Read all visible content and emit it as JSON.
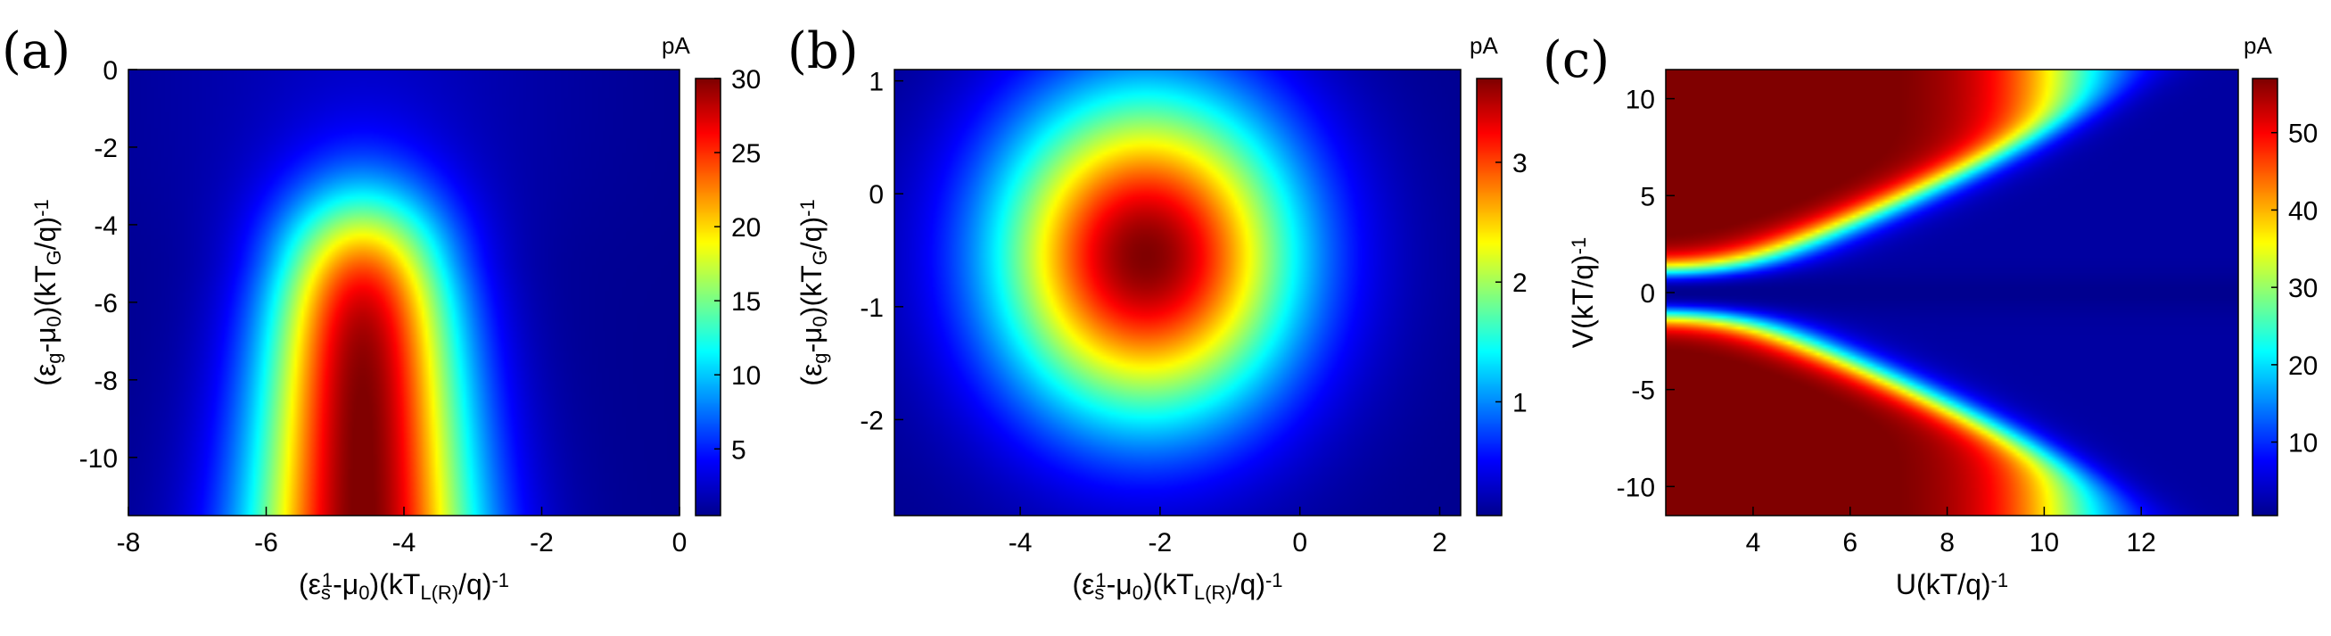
{
  "colormap": [
    "#00008F",
    "#0000FF",
    "#0080FF",
    "#00FFFF",
    "#80FF80",
    "#FFFF00",
    "#FF8000",
    "#FF0000",
    "#800000"
  ],
  "chart_data": [
    {
      "type": "heatmap",
      "panel_label": "(a)",
      "colorbar_unit": "pA",
      "xlabel": {
        "a": "(ε",
        "b": "s",
        "c": "1",
        "d": "-μ",
        "e": "0",
        "f": ")(kT",
        "g": "L(R)",
        "h": "/q)",
        "i": "-1"
      },
      "ylabel": {
        "a": "(ε",
        "b": "g",
        "c": "-μ",
        "d": "0",
        "e": ")(kT",
        "f": "G",
        "g": "/q)",
        "h": "-1"
      },
      "xlim": [
        -8,
        0
      ],
      "ylim": [
        -11.5,
        0
      ],
      "xticks": [
        -8,
        -6,
        -4,
        -2,
        0
      ],
      "xtick_labels": [
        "-8",
        "-6",
        "-4",
        "-2",
        "0"
      ],
      "yticks": [
        0,
        -2,
        -4,
        -6,
        -8,
        -10
      ],
      "ytick_labels": [
        "0",
        "-2",
        "-4",
        "-6",
        "-8",
        "-10"
      ],
      "cbar_range": [
        0.5,
        30
      ],
      "cbar_ticks": [
        5,
        10,
        15,
        20,
        25,
        30
      ],
      "cbar_tick_labels": [
        "5",
        "10",
        "15",
        "20",
        "25",
        "30"
      ],
      "model": "arch",
      "peak_value": 30,
      "peak_x": -4.6
    },
    {
      "type": "heatmap",
      "panel_label": "(b)",
      "colorbar_unit": "pA",
      "xlabel": {
        "a": "(ε",
        "b": "s",
        "c": "1",
        "d": "-μ",
        "e": "0",
        "f": ")(kT",
        "g": "L(R)",
        "h": "/q)",
        "i": "-1"
      },
      "ylabel": {
        "a": "(ε",
        "b": "g",
        "c": "-μ",
        "d": "0",
        "e": ")(kT",
        "f": "G",
        "g": "/q)",
        "h": "-1"
      },
      "xlim": [
        -5.8,
        2.3
      ],
      "ylim": [
        -2.85,
        1.1
      ],
      "xticks": [
        -4,
        -2,
        0,
        2
      ],
      "xtick_labels": [
        "-4",
        "-2",
        "0",
        "2"
      ],
      "yticks": [
        1,
        0,
        -1,
        -2
      ],
      "ytick_labels": [
        "1",
        "0",
        "-1",
        "-2"
      ],
      "cbar_range": [
        0.05,
        3.7
      ],
      "cbar_ticks": [
        1,
        2,
        3
      ],
      "cbar_tick_labels": [
        "1",
        "2",
        "3"
      ],
      "model": "blob",
      "peak_value": 3.7,
      "peak_x": -2.2,
      "peak_y": -0.55
    },
    {
      "type": "heatmap",
      "panel_label": "(c)",
      "colorbar_unit": "pA",
      "xlabel": {
        "a": "U(kT/q)",
        "b": "-1"
      },
      "ylabel": {
        "a": "V(kT/q)",
        "b": "-1"
      },
      "xlim": [
        2.2,
        14
      ],
      "ylim": [
        -11.5,
        11.5
      ],
      "xticks": [
        4,
        6,
        8,
        10,
        12
      ],
      "xtick_labels": [
        "4",
        "6",
        "8",
        "10",
        "12"
      ],
      "yticks": [
        10,
        5,
        0,
        -5,
        -10
      ],
      "ytick_labels": [
        "10",
        "5",
        "0",
        "-5",
        "-10"
      ],
      "cbar_range": [
        0.5,
        57
      ],
      "cbar_ticks": [
        10,
        20,
        30,
        40,
        50
      ],
      "cbar_tick_labels": [
        "10",
        "20",
        "30",
        "40",
        "50"
      ],
      "model": "hyperbola",
      "peak_value": 57
    }
  ]
}
